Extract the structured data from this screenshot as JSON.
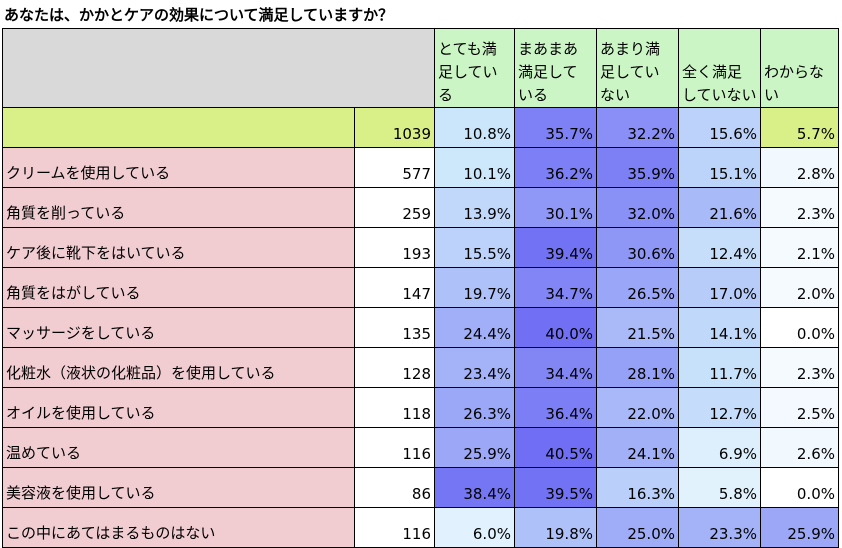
{
  "title": "あなたは、かかとケアの効果について満足していますか？",
  "chart_data": {
    "type": "table",
    "columns": [
      "とても満足している",
      "まあまあ満足している",
      "あまり満足していない",
      "全く満足していない",
      "わからない"
    ],
    "column_display": [
      [
        "とても満",
        "足している"
      ],
      [
        "まあまあ",
        "満足して",
        "いる"
      ],
      [
        "あまり満",
        "足してい",
        "ない"
      ],
      [
        "全く満足",
        "していない"
      ],
      [
        "わからない"
      ]
    ],
    "total": {
      "label": "",
      "n": 1039,
      "values": [
        "10.8%",
        "35.7%",
        "32.2%",
        "15.6%",
        "5.7%"
      ]
    },
    "rows": [
      {
        "label": "クリームを使用している",
        "n": 577,
        "values": [
          "10.1%",
          "36.2%",
          "35.9%",
          "15.1%",
          "2.8%"
        ]
      },
      {
        "label": "角質を削っている",
        "n": 259,
        "values": [
          "13.9%",
          "30.1%",
          "32.0%",
          "21.6%",
          "2.3%"
        ]
      },
      {
        "label": "ケア後に靴下をはいている",
        "n": 193,
        "values": [
          "15.5%",
          "39.4%",
          "30.6%",
          "12.4%",
          "2.1%"
        ]
      },
      {
        "label": "角質をはがしている",
        "n": 147,
        "values": [
          "19.7%",
          "34.7%",
          "26.5%",
          "17.0%",
          "2.0%"
        ]
      },
      {
        "label": "マッサージをしている",
        "n": 135,
        "values": [
          "24.4%",
          "40.0%",
          "21.5%",
          "14.1%",
          "0.0%"
        ]
      },
      {
        "label": "化粧水（液状の化粧品）を使用している",
        "n": 128,
        "values": [
          "23.4%",
          "34.4%",
          "28.1%",
          "11.7%",
          "2.3%"
        ]
      },
      {
        "label": "オイルを使用している",
        "n": 118,
        "values": [
          "26.3%",
          "36.4%",
          "22.0%",
          "12.7%",
          "2.5%"
        ]
      },
      {
        "label": "温めている",
        "n": 116,
        "values": [
          "25.9%",
          "40.5%",
          "24.1%",
          "6.9%",
          "2.6%"
        ]
      },
      {
        "label": "美容液を使用している",
        "n": 86,
        "values": [
          "38.4%",
          "39.5%",
          "16.3%",
          "5.8%",
          "0.0%"
        ]
      },
      {
        "label": "この中にあてはまるものはない",
        "n": 116,
        "values": [
          "6.0%",
          "19.8%",
          "25.0%",
          "23.3%",
          "25.9%"
        ]
      }
    ]
  },
  "colors": {
    "header": "#ccf5c6",
    "header_corner": "#d9d9d9",
    "total_row": "#d9ef88",
    "row_label": "#f1cdd2",
    "heat_low": "#ffffff",
    "heat_mid": "#cde8fb",
    "heat_high": "#6f6ef4"
  }
}
